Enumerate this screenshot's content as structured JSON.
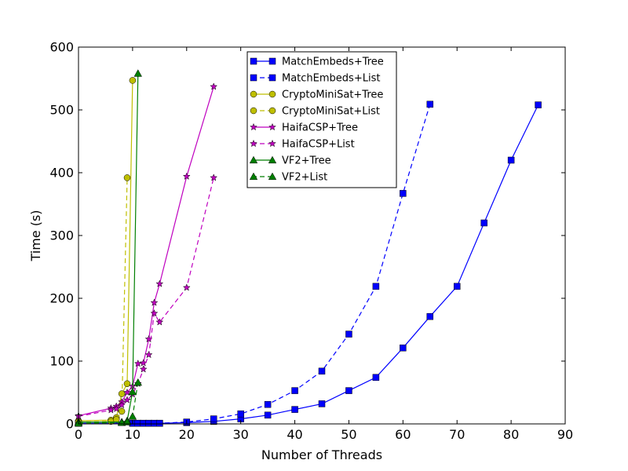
{
  "chart_data": {
    "type": "line",
    "title": "",
    "xlabel": "Number of Threads",
    "ylabel": "Time (s)",
    "xlim": [
      0,
      90
    ],
    "ylim": [
      0,
      600
    ],
    "xticks": [
      "0",
      "10",
      "20",
      "30",
      "40",
      "50",
      "60",
      "70",
      "80",
      "90"
    ],
    "yticks": [
      "0",
      "100",
      "200",
      "300",
      "400",
      "500",
      "600"
    ],
    "grid": false,
    "legend_position": "top-center",
    "series": [
      {
        "name": "MatchEmbeds+Tree",
        "color": "#0000ff",
        "marker": "square",
        "linestyle": "solid",
        "x": [
          0,
          10,
          11,
          12,
          13,
          14,
          15,
          20,
          25,
          30,
          35,
          40,
          45,
          50,
          55,
          60,
          65,
          70,
          75,
          80,
          85
        ],
        "y": [
          1,
          1,
          1,
          1,
          1,
          1,
          1,
          2,
          4,
          8,
          14,
          23,
          32,
          53,
          74,
          121,
          171,
          219,
          320,
          420,
          508
        ]
      },
      {
        "name": "MatchEmbeds+List",
        "color": "#0000ff",
        "marker": "square",
        "linestyle": "dashed",
        "x": [
          0,
          10,
          11,
          12,
          13,
          14,
          15,
          20,
          25,
          30,
          35,
          40,
          45,
          50,
          55,
          60,
          65
        ],
        "y": [
          1,
          1,
          1,
          1,
          1,
          1,
          1,
          3,
          8,
          16,
          31,
          53,
          84,
          143,
          219,
          367,
          509
        ]
      },
      {
        "name": "CryptoMiniSat+Tree",
        "color": "#bfbf00",
        "marker": "circle",
        "linestyle": "solid",
        "x": [
          0,
          6,
          7,
          8,
          9,
          10
        ],
        "y": [
          5,
          6,
          10,
          48,
          64,
          547
        ]
      },
      {
        "name": "CryptoMiniSat+List",
        "color": "#bfbf00",
        "marker": "circle",
        "linestyle": "dashed",
        "x": [
          0,
          6,
          7,
          8,
          9
        ],
        "y": [
          3,
          4,
          7,
          20,
          392
        ]
      },
      {
        "name": "HaifaCSP+Tree",
        "color": "#bf00bf",
        "marker": "star",
        "linestyle": "solid",
        "x": [
          0,
          6,
          7,
          8,
          9,
          10,
          11,
          12,
          13,
          14,
          15,
          20,
          25
        ],
        "y": [
          13,
          25,
          28,
          35,
          50,
          60,
          96,
          97,
          135,
          193,
          223,
          394,
          537
        ]
      },
      {
        "name": "HaifaCSP+List",
        "color": "#bf00bf",
        "marker": "star",
        "linestyle": "dashed",
        "x": [
          0,
          6,
          7,
          8,
          9,
          10,
          11,
          12,
          13,
          14,
          15,
          20,
          25
        ],
        "y": [
          12,
          22,
          24,
          30,
          38,
          47,
          64,
          87,
          110,
          176,
          162,
          217,
          392
        ]
      },
      {
        "name": "VF2+Tree",
        "color": "#007f00",
        "marker": "triangle",
        "linestyle": "solid",
        "x": [
          0,
          8,
          9,
          10,
          11
        ],
        "y": [
          3,
          3,
          5,
          51,
          558
        ]
      },
      {
        "name": "VF2+List",
        "color": "#007f00",
        "marker": "triangle",
        "linestyle": "dashed",
        "x": [
          0,
          8,
          9,
          10,
          11
        ],
        "y": [
          1,
          2,
          3,
          12,
          66
        ]
      }
    ]
  }
}
